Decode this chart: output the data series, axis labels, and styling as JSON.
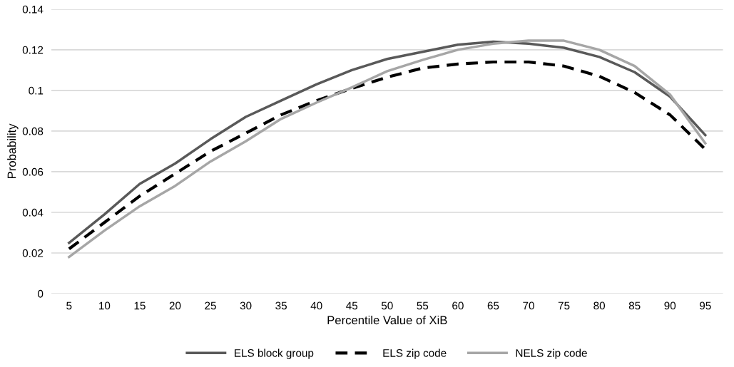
{
  "chart_data": {
    "type": "line",
    "xlabel": "Percentile Value of XiB",
    "ylabel": "Probability",
    "categories": [
      "5",
      "10",
      "15",
      "20",
      "25",
      "30",
      "35",
      "40",
      "45",
      "50",
      "55",
      "60",
      "65",
      "70",
      "75",
      "80",
      "85",
      "90",
      "95"
    ],
    "series": [
      {
        "name": "ELS block group",
        "color": "#595959",
        "line_style": "solid",
        "values": [
          0.025,
          0.039,
          0.054,
          0.064,
          0.076,
          0.087,
          0.095,
          0.103,
          0.11,
          0.1155,
          0.119,
          0.1225,
          0.124,
          0.123,
          0.121,
          0.1165,
          0.109,
          0.097,
          0.078
        ]
      },
      {
        "name": "ELS zip code",
        "color": "#000000",
        "line_style": "dashed",
        "values": [
          0.022,
          0.035,
          0.048,
          0.059,
          0.07,
          0.079,
          0.088,
          0.095,
          0.101,
          0.1065,
          0.111,
          0.113,
          0.114,
          0.114,
          0.112,
          0.107,
          0.099,
          0.088,
          0.071
        ]
      },
      {
        "name": "NELS zip code",
        "color": "#a6a6a6",
        "line_style": "solid",
        "values": [
          0.018,
          0.031,
          0.043,
          0.053,
          0.065,
          0.075,
          0.086,
          0.094,
          0.1015,
          0.1095,
          0.115,
          0.12,
          0.123,
          0.1245,
          0.1245,
          0.12,
          0.112,
          0.098,
          0.074
        ]
      }
    ],
    "ylim": [
      0,
      0.14
    ],
    "yticks": [
      0,
      0.02,
      0.04,
      0.06,
      0.08,
      0.1,
      0.12,
      0.14
    ],
    "grid": "y",
    "legend": "bottom",
    "marker": "none"
  }
}
